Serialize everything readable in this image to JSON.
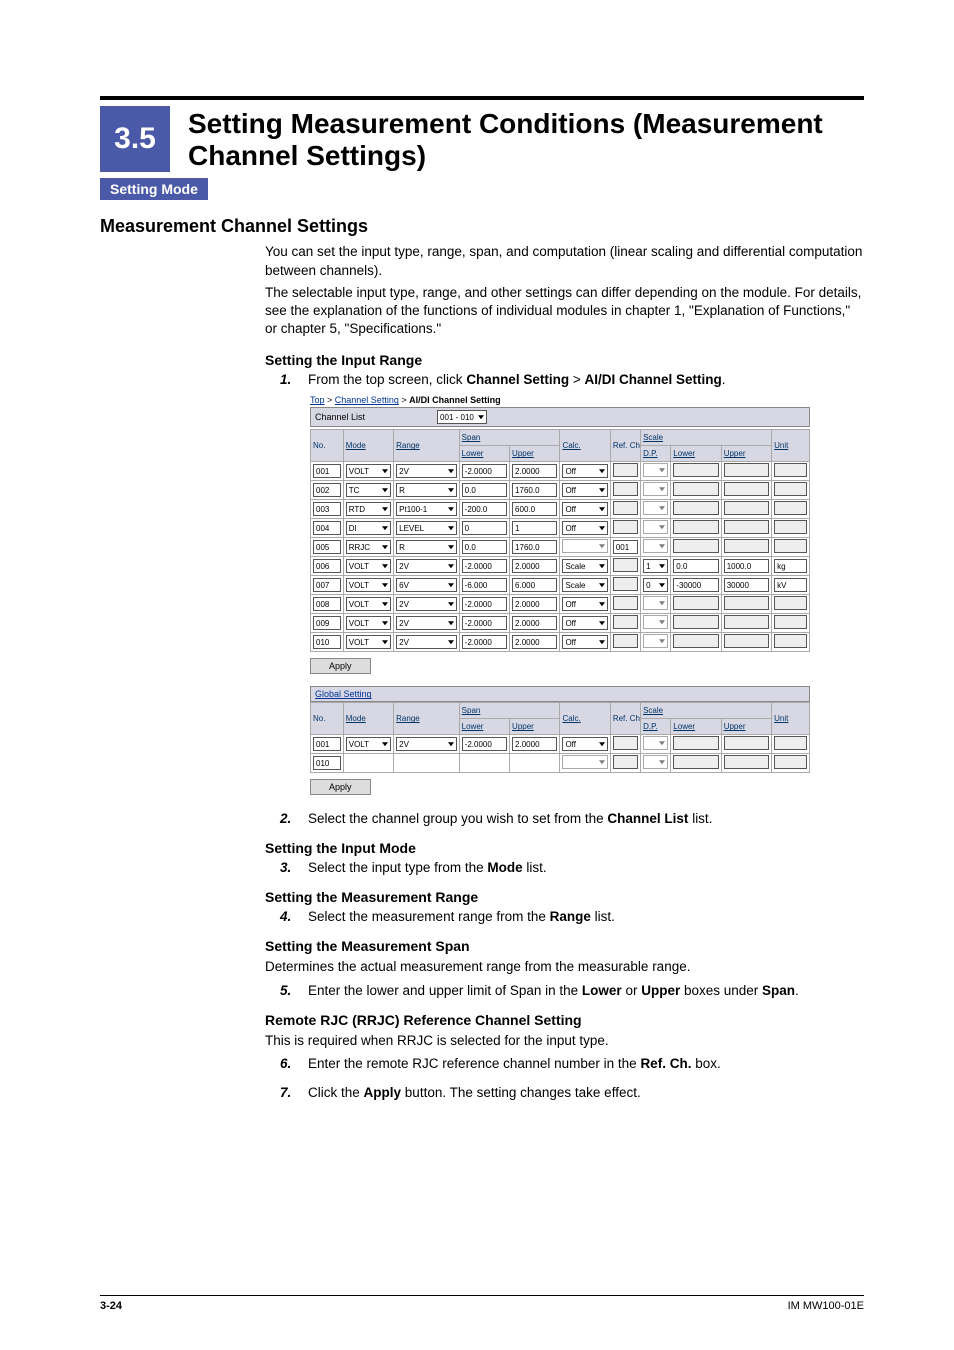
{
  "section_number": "3.5",
  "section_title": "Setting Measurement Conditions (Measurement Channel Settings)",
  "mode_tag": "Setting Mode",
  "h2": "Measurement Channel Settings",
  "intro1": "You can set the input type, range, span, and computation (linear scaling and differential computation between channels).",
  "intro2": "The selectable input type, range, and other settings can differ depending on the module. For details, see the explanation of the functions of individual modules in chapter 1, \"Explanation of Functions,\" or chapter 5, \"Specifications.\"",
  "h3_input_range": "Setting the Input Range",
  "step1_pre": "From the top screen, click ",
  "step1_b1": "Channel Setting",
  "step1_gt": " > ",
  "step1_b2": "AI/DI Channel Setting",
  "step1_post": ".",
  "step2_pre": "Select the channel group you wish to set from the ",
  "step2_b": "Channel List",
  "step2_post": " list.",
  "h3_input_mode": "Setting the Input Mode",
  "step3_pre": "Select the input type from the ",
  "step3_b": "Mode",
  "step3_post": " list.",
  "h3_meas_range": "Setting the Measurement Range",
  "step4_pre": "Select the measurement range from the ",
  "step4_b": "Range",
  "step4_post": " list.",
  "h3_meas_span": "Setting the Measurement Span",
  "span_desc": "Determines the actual measurement range from the measurable range.",
  "step5_pre": "Enter the lower and upper limit of Span in the ",
  "step5_b1": "Lower",
  "step5_mid": " or ",
  "step5_b2": "Upper",
  "step5_mid2": " boxes under ",
  "step5_b3": "Span",
  "step5_post": ".",
  "h3_rrjc": "Remote RJC (RRJC) Reference Channel Setting",
  "rrjc_desc": "This is required when RRJC is selected for the input type.",
  "step6_pre": "Enter the remote RJC reference channel number in the ",
  "step6_b": "Ref. Ch.",
  "step6_post": " box.",
  "step7_pre": "Click the ",
  "step7_b": "Apply",
  "step7_post": " button. The setting changes take effect.",
  "footer_page": "3-24",
  "footer_code": "IM MW100-01E",
  "step_nums": {
    "n1": "1.",
    "n2": "2.",
    "n3": "3.",
    "n4": "4.",
    "n5": "5.",
    "n6": "6.",
    "n7": "7."
  },
  "shot": {
    "breadcrumb": {
      "top": "Top",
      "cs": "Channel Setting",
      "aidi": "AI/DI Channel Setting",
      "sep": " > "
    },
    "channel_list_label": "Channel List",
    "channel_list_sel": "001 - 010",
    "apply_btn": "Apply",
    "global_setting": "Global Setting",
    "headers": {
      "no": "No.",
      "mode": "Mode",
      "range": "Range",
      "span": "Span",
      "lower": "Lower",
      "upper": "Upper",
      "calc": "Calc.",
      "refch": "Ref.\nCh",
      "scale": "Scale",
      "dp": "D.P.",
      "unit": "Unit"
    },
    "rows": [
      {
        "no": "001",
        "mode": "VOLT",
        "range": "2V",
        "lower": "-2.0000",
        "upper": "2.0000",
        "calc": "Off",
        "ref": "",
        "dp": "",
        "slo": "",
        "sup": "",
        "unit": ""
      },
      {
        "no": "002",
        "mode": "TC",
        "range": "R",
        "lower": "0.0",
        "upper": "1760.0",
        "calc": "Off",
        "ref": "",
        "dp": "",
        "slo": "",
        "sup": "",
        "unit": ""
      },
      {
        "no": "003",
        "mode": "RTD",
        "range": "Pt100-1",
        "lower": "-200.0",
        "upper": "600.0",
        "calc": "Off",
        "ref": "",
        "dp": "",
        "slo": "",
        "sup": "",
        "unit": ""
      },
      {
        "no": "004",
        "mode": "DI",
        "range": "LEVEL",
        "lower": "0",
        "upper": "1",
        "calc": "Off",
        "ref": "",
        "dp": "",
        "slo": "",
        "sup": "",
        "unit": ""
      },
      {
        "no": "005",
        "mode": "RRJC",
        "range": "R",
        "lower": "0.0",
        "upper": "1760.0",
        "calc": "",
        "ref": "001",
        "dp": "",
        "slo": "",
        "sup": "",
        "unit": ""
      },
      {
        "no": "006",
        "mode": "VOLT",
        "range": "2V",
        "lower": "-2.0000",
        "upper": "2.0000",
        "calc": "Scale",
        "ref": "",
        "dp": "1",
        "slo": "0.0",
        "sup": "1000.0",
        "unit": "kg"
      },
      {
        "no": "007",
        "mode": "VOLT",
        "range": "6V",
        "lower": "-6.000",
        "upper": "6.000",
        "calc": "Scale",
        "ref": "",
        "dp": "0",
        "slo": "-30000",
        "sup": "30000",
        "unit": "kV"
      },
      {
        "no": "008",
        "mode": "VOLT",
        "range": "2V",
        "lower": "-2.0000",
        "upper": "2.0000",
        "calc": "Off",
        "ref": "",
        "dp": "",
        "slo": "",
        "sup": "",
        "unit": ""
      },
      {
        "no": "009",
        "mode": "VOLT",
        "range": "2V",
        "lower": "-2.0000",
        "upper": "2.0000",
        "calc": "Off",
        "ref": "",
        "dp": "",
        "slo": "",
        "sup": "",
        "unit": ""
      },
      {
        "no": "010",
        "mode": "VOLT",
        "range": "2V",
        "lower": "-2.0000",
        "upper": "2.0000",
        "calc": "Off",
        "ref": "",
        "dp": "",
        "slo": "",
        "sup": "",
        "unit": ""
      }
    ],
    "global_rows": [
      {
        "no": "001",
        "mode": "VOLT",
        "range": "2V",
        "lower": "-2.0000",
        "upper": "2.0000",
        "calc": "Off",
        "ref": "",
        "dp": "",
        "slo": "",
        "sup": "",
        "unit": ""
      },
      {
        "no": "010",
        "mode": "",
        "range": "",
        "lower": "",
        "upper": "",
        "calc": "",
        "ref": "",
        "dp": "",
        "slo": "",
        "sup": "",
        "unit": ""
      }
    ]
  }
}
